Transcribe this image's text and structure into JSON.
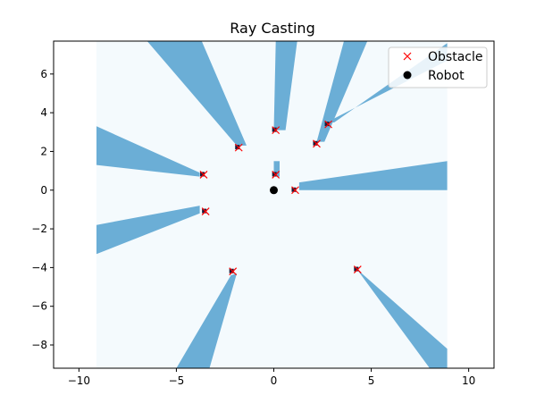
{
  "chart_data": {
    "type": "scatter",
    "title": "Ray Casting",
    "xlabel": "",
    "ylabel": "",
    "xlim": [
      -11.3,
      11.3
    ],
    "ylim": [
      -9.2,
      7.7
    ],
    "grid": false,
    "xticks": [
      -10,
      -5,
      0,
      5,
      10
    ],
    "yticks": [
      -8,
      -6,
      -4,
      -2,
      0,
      2,
      4,
      6
    ],
    "xtick_labels": [
      "−10",
      "−5",
      "0",
      "5",
      "10"
    ],
    "ytick_labels": [
      "−8",
      "−6",
      "−4",
      "−2",
      "0",
      "2",
      "4",
      "6"
    ],
    "occupancy_grid": {
      "x_range": [
        -9.1,
        8.9
      ],
      "y_range": [
        -9.2,
        7.7
      ],
      "free_color": "#f4fafd",
      "shadow_color": "#6baed6",
      "shadows": [
        [
          [
            -1.9,
            2.3
          ],
          [
            -1.4,
            2.3
          ],
          [
            -3.7,
            7.7
          ],
          [
            -6.5,
            7.7
          ]
        ],
        [
          [
            0.0,
            3.1
          ],
          [
            0.6,
            3.1
          ],
          [
            1.2,
            7.7
          ],
          [
            0.1,
            7.7
          ]
        ],
        [
          [
            2.2,
            2.5
          ],
          [
            2.6,
            2.5
          ],
          [
            4.8,
            7.7
          ],
          [
            3.6,
            7.7
          ]
        ],
        [
          [
            2.7,
            3.5
          ],
          [
            3.1,
            3.5
          ],
          [
            8.9,
            7.6
          ],
          [
            8.9,
            6.7
          ]
        ],
        [
          [
            1.3,
            0.0
          ],
          [
            1.3,
            0.4
          ],
          [
            8.9,
            1.5
          ],
          [
            8.9,
            0.0
          ]
        ],
        [
          [
            -3.8,
            0.7
          ],
          [
            -3.8,
            0.9
          ],
          [
            -9.1,
            3.3
          ],
          [
            -9.1,
            1.3
          ]
        ],
        [
          [
            -3.8,
            -1.2
          ],
          [
            -3.8,
            -0.8
          ],
          [
            -9.1,
            -1.8
          ],
          [
            -9.1,
            -3.3
          ]
        ],
        [
          [
            -2.2,
            -4.4
          ],
          [
            -1.9,
            -4.3
          ],
          [
            -3.3,
            -9.2
          ],
          [
            -5.0,
            -9.2
          ]
        ],
        [
          [
            4.2,
            -4.0
          ],
          [
            4.4,
            -4.2
          ],
          [
            8.9,
            -8.2
          ],
          [
            8.9,
            -9.2
          ],
          [
            8.0,
            -9.2
          ]
        ],
        [
          [
            0.0,
            0.7
          ],
          [
            0.3,
            0.7
          ],
          [
            0.3,
            1.5
          ],
          [
            0.0,
            1.5
          ]
        ]
      ]
    },
    "series": [
      {
        "name": "Obstacle",
        "marker": "x",
        "color": "#ff0000",
        "x": [
          0.1,
          0.1,
          1.1,
          -3.6,
          -3.5,
          -1.8,
          2.2,
          2.8,
          -2.1,
          4.3
        ],
        "y": [
          3.1,
          0.8,
          0.0,
          0.8,
          -1.1,
          2.2,
          2.4,
          3.4,
          -4.2,
          -4.1
        ]
      },
      {
        "name": "Robot",
        "marker": "o",
        "color": "#000000",
        "x": [
          0.0
        ],
        "y": [
          0.0
        ]
      }
    ],
    "legend": {
      "position": "top-right",
      "entries": [
        "Obstacle",
        "Robot"
      ]
    }
  }
}
